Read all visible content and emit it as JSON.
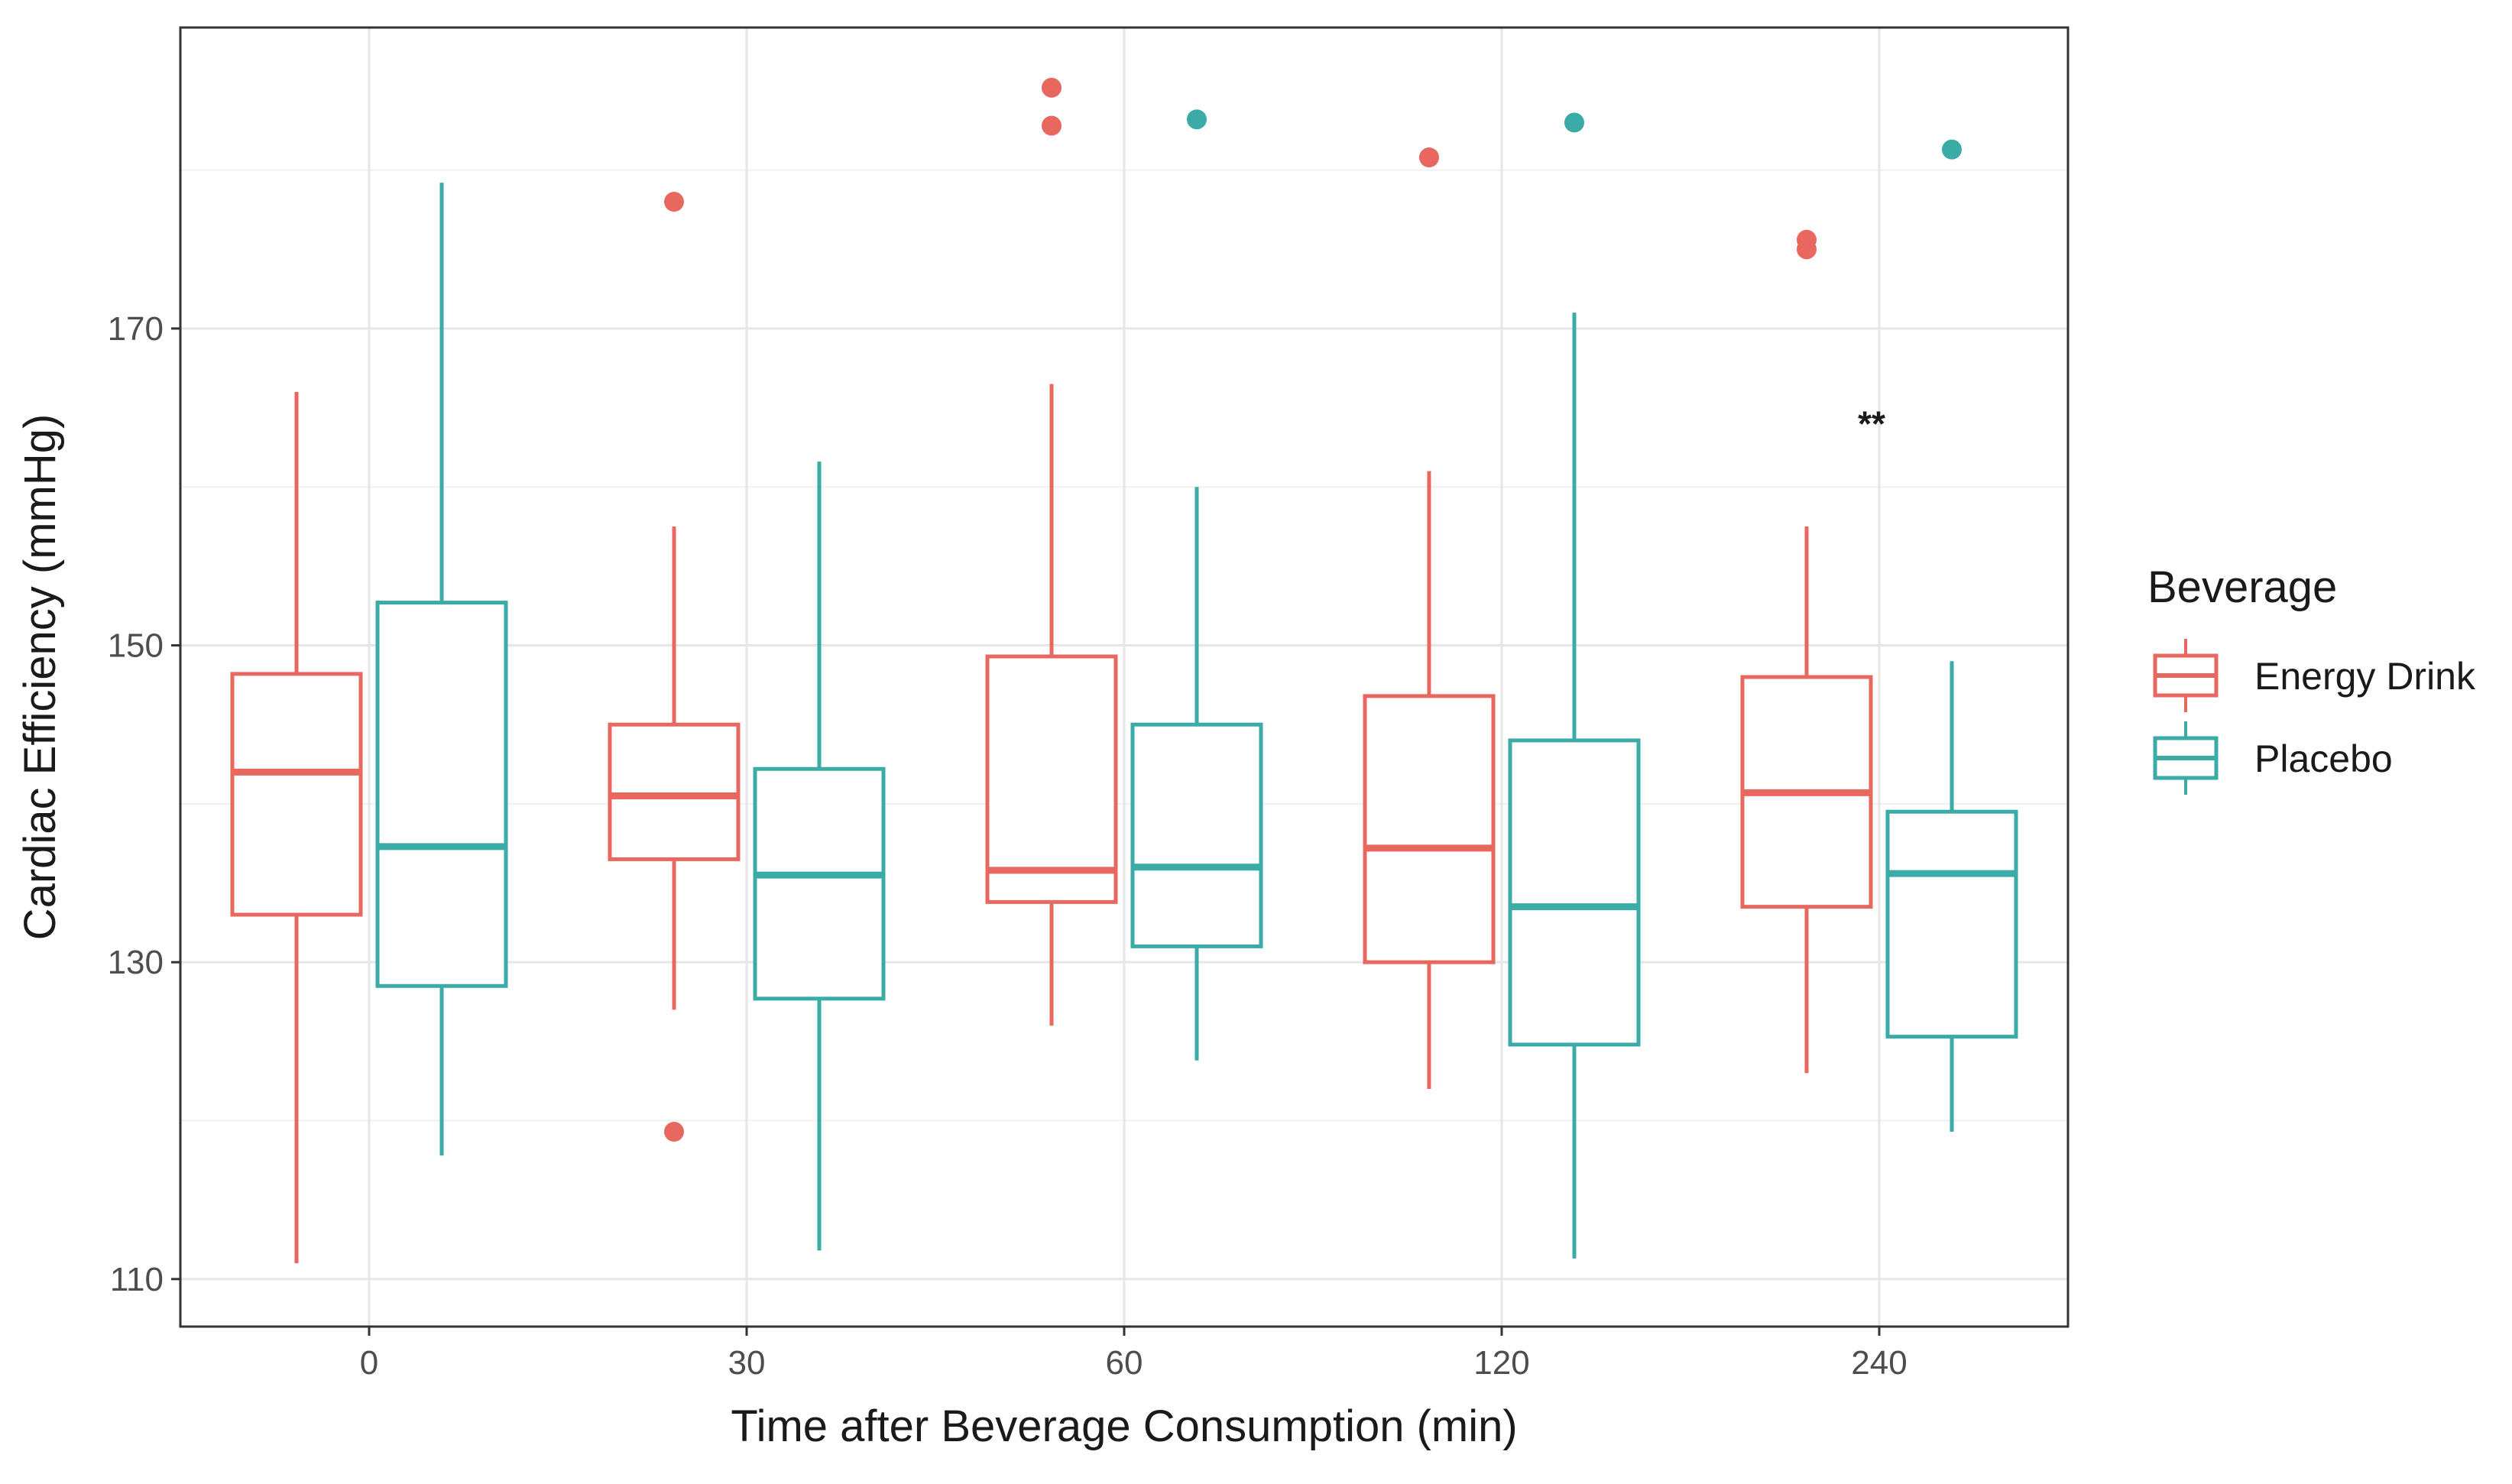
{
  "chart_data": {
    "type": "boxplot",
    "title": "",
    "xlabel": "Time after Beverage Consumption (min)",
    "ylabel": "Cardiac Efficiency (mmHg)",
    "categories": [
      "0",
      "30",
      "60",
      "120",
      "240"
    ],
    "y_ticks": [
      110,
      130,
      150,
      170
    ],
    "y_tick_labels": [
      "110",
      "130",
      "150",
      "170"
    ],
    "ylim": [
      107,
      189
    ],
    "grid": true,
    "legend": {
      "title": "Beverage",
      "position": "right"
    },
    "annotations": [
      {
        "text": "**",
        "category": "240",
        "y": 164
      }
    ],
    "series": [
      {
        "name": "Energy Drink",
        "color": "#E8675F",
        "boxes": [
          {
            "category": "0",
            "whisker_low": 111.0,
            "q1": 133.0,
            "median": 142.0,
            "q3": 148.2,
            "whisker_high": 166.0,
            "outliers": []
          },
          {
            "category": "30",
            "whisker_low": 127.0,
            "q1": 136.5,
            "median": 140.5,
            "q3": 145.0,
            "whisker_high": 157.5,
            "outliers": [
              119.3,
              178.0
            ]
          },
          {
            "category": "60",
            "whisker_low": 126.0,
            "q1": 133.8,
            "median": 135.8,
            "q3": 149.3,
            "whisker_high": 166.5,
            "outliers": [
              185.2,
              182.8
            ]
          },
          {
            "category": "120",
            "whisker_low": 122.0,
            "q1": 130.0,
            "median": 137.2,
            "q3": 146.8,
            "whisker_high": 161.0,
            "outliers": [
              180.8
            ]
          },
          {
            "category": "240",
            "whisker_low": 123.0,
            "q1": 133.5,
            "median": 140.7,
            "q3": 148.0,
            "whisker_high": 157.5,
            "outliers": [
              175.6,
              175.0
            ]
          }
        ]
      },
      {
        "name": "Placebo",
        "color": "#3AABA7",
        "boxes": [
          {
            "category": "0",
            "whisker_low": 117.8,
            "q1": 128.5,
            "median": 137.3,
            "q3": 152.7,
            "whisker_high": 179.2,
            "outliers": []
          },
          {
            "category": "30",
            "whisker_low": 111.8,
            "q1": 127.7,
            "median": 135.5,
            "q3": 142.2,
            "whisker_high": 161.6,
            "outliers": []
          },
          {
            "category": "60",
            "whisker_low": 123.8,
            "q1": 131.0,
            "median": 136.0,
            "q3": 145.0,
            "whisker_high": 160.0,
            "outliers": [
              183.2
            ]
          },
          {
            "category": "120",
            "whisker_low": 111.3,
            "q1": 124.8,
            "median": 133.5,
            "q3": 144.0,
            "whisker_high": 171.0,
            "outliers": [
              183.0
            ]
          },
          {
            "category": "240",
            "whisker_low": 119.3,
            "q1": 125.3,
            "median": 135.6,
            "q3": 139.5,
            "whisker_high": 149.0,
            "outliers": [
              181.3
            ]
          }
        ]
      }
    ]
  }
}
